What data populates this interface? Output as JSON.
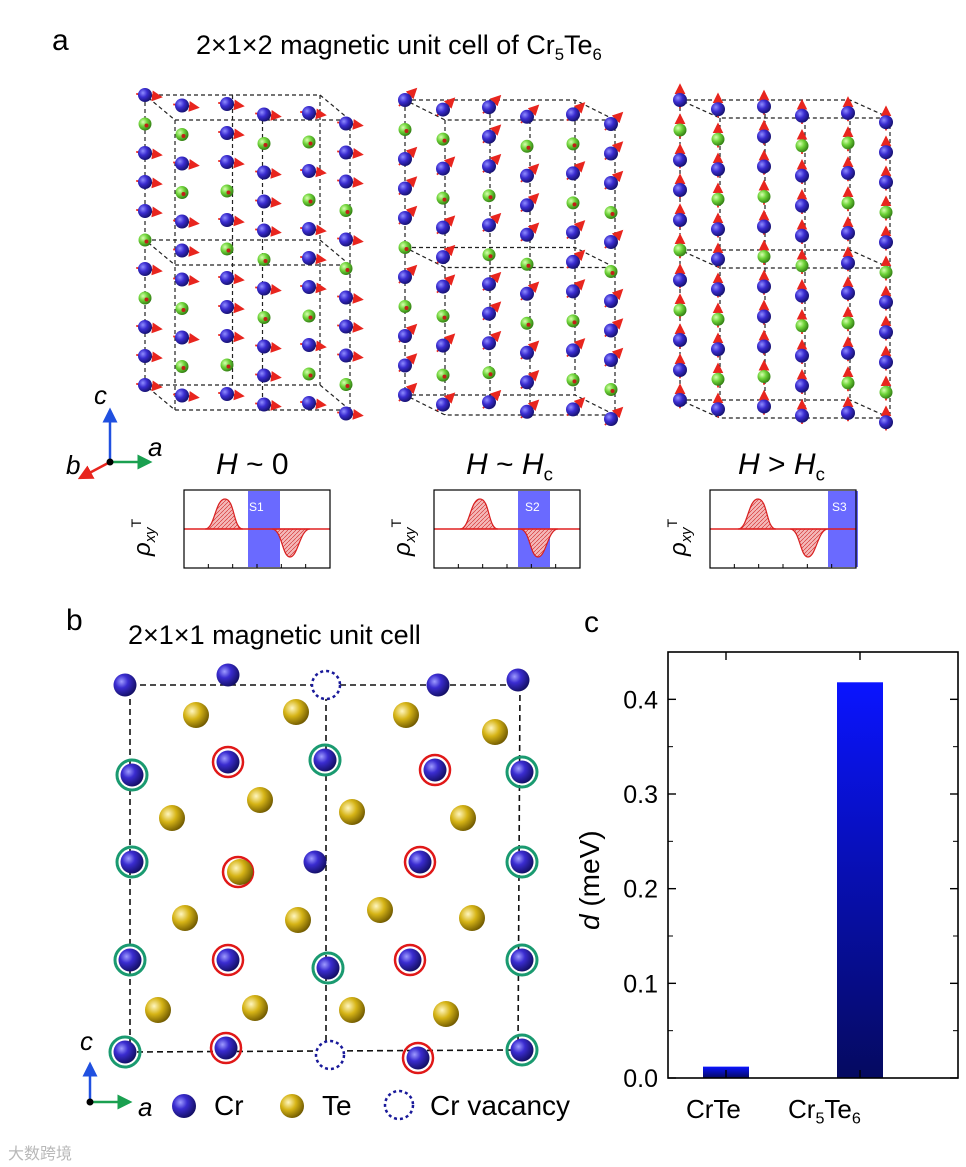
{
  "panel_a": {
    "letter": "a",
    "title_pre": "2×1×2 magnetic unit cell of Cr",
    "title_sub1": "5",
    "title_mid": "Te",
    "title_sub2": "6",
    "axes": {
      "c": "c",
      "b": "b",
      "a": "a"
    },
    "states": [
      {
        "field_prefix": "H",
        "relation": "~",
        "field_value": "0",
        "field_sub": "",
        "region_label": "S1"
      },
      {
        "field_prefix": "H",
        "relation": "~",
        "field_value": "H",
        "field_sub": "c",
        "region_label": "S2"
      },
      {
        "field_prefix": "H",
        "relation": ">",
        "field_value": "H",
        "field_sub": "c",
        "region_label": "S3"
      }
    ],
    "rho_symbol": "ρ",
    "rho_sub": "xy",
    "rho_sup": "T"
  },
  "panel_b": {
    "letter": "b",
    "title": "2×1×1 magnetic unit cell",
    "axes": {
      "c": "c",
      "a": "a"
    },
    "legend": [
      {
        "label": "Cr",
        "color": "#2a1fb0"
      },
      {
        "label": "Te",
        "color": "#c8ac10"
      },
      {
        "label": "Cr vacancy",
        "color": "#1a1a9a"
      }
    ]
  },
  "panel_c": {
    "letter": "c",
    "chart_data": {
      "type": "bar",
      "categories": [
        "CrTe",
        "Cr5Te6"
      ],
      "category_labels": [
        {
          "main": "CrTe",
          "sub1": "",
          "mid": "",
          "sub2": ""
        },
        {
          "main": "Cr",
          "sub1": "5",
          "mid": "Te",
          "sub2": "6"
        }
      ],
      "values": [
        0.012,
        0.418
      ],
      "ylabel_symbol": "d",
      "ylabel_unit": "(meV)",
      "ylim": [
        0,
        0.45
      ],
      "yticks": [
        "0.0",
        "0.1",
        "0.2",
        "0.3",
        "0.4"
      ],
      "bar_color": "#0a14ff"
    }
  },
  "watermark": "大数跨境"
}
